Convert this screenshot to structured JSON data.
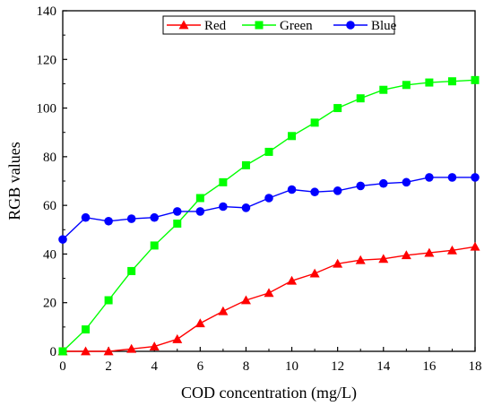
{
  "chart_data": {
    "type": "line",
    "xlabel": "COD concentration (mg/L)",
    "ylabel": "RGB values",
    "xlim": [
      0,
      18
    ],
    "ylim": [
      0,
      140
    ],
    "xticks": [
      0,
      2,
      4,
      6,
      8,
      10,
      12,
      14,
      16,
      18
    ],
    "yticks": [
      0,
      20,
      40,
      60,
      80,
      100,
      120,
      140
    ],
    "grid": false,
    "legend_position": "top-center",
    "x": [
      0,
      1,
      2,
      3,
      4,
      5,
      6,
      7,
      8,
      9,
      10,
      11,
      12,
      13,
      14,
      15,
      16,
      17,
      18
    ],
    "series": [
      {
        "name": "Red",
        "color": "#ff0000",
        "marker": "triangle",
        "values": [
          0,
          0,
          0,
          1,
          2,
          5,
          11.5,
          16.5,
          21,
          24,
          29,
          32,
          36,
          37.5,
          38,
          39.5,
          40.5,
          41.5,
          43
        ]
      },
      {
        "name": "Green",
        "color": "#00ff00",
        "marker": "square",
        "values": [
          0,
          9,
          21,
          33,
          43.5,
          52.5,
          63,
          69.5,
          76.5,
          82,
          88.5,
          94,
          100,
          104,
          107.5,
          109.5,
          110.5,
          111,
          111.5
        ]
      },
      {
        "name": "Blue",
        "color": "#0000ff",
        "marker": "circle",
        "values": [
          46,
          55,
          53.5,
          54.5,
          55,
          57.5,
          57.5,
          59.5,
          59,
          63,
          66.5,
          65.5,
          66,
          68,
          69,
          69.5,
          71.5,
          71.5,
          71.5
        ]
      }
    ]
  }
}
